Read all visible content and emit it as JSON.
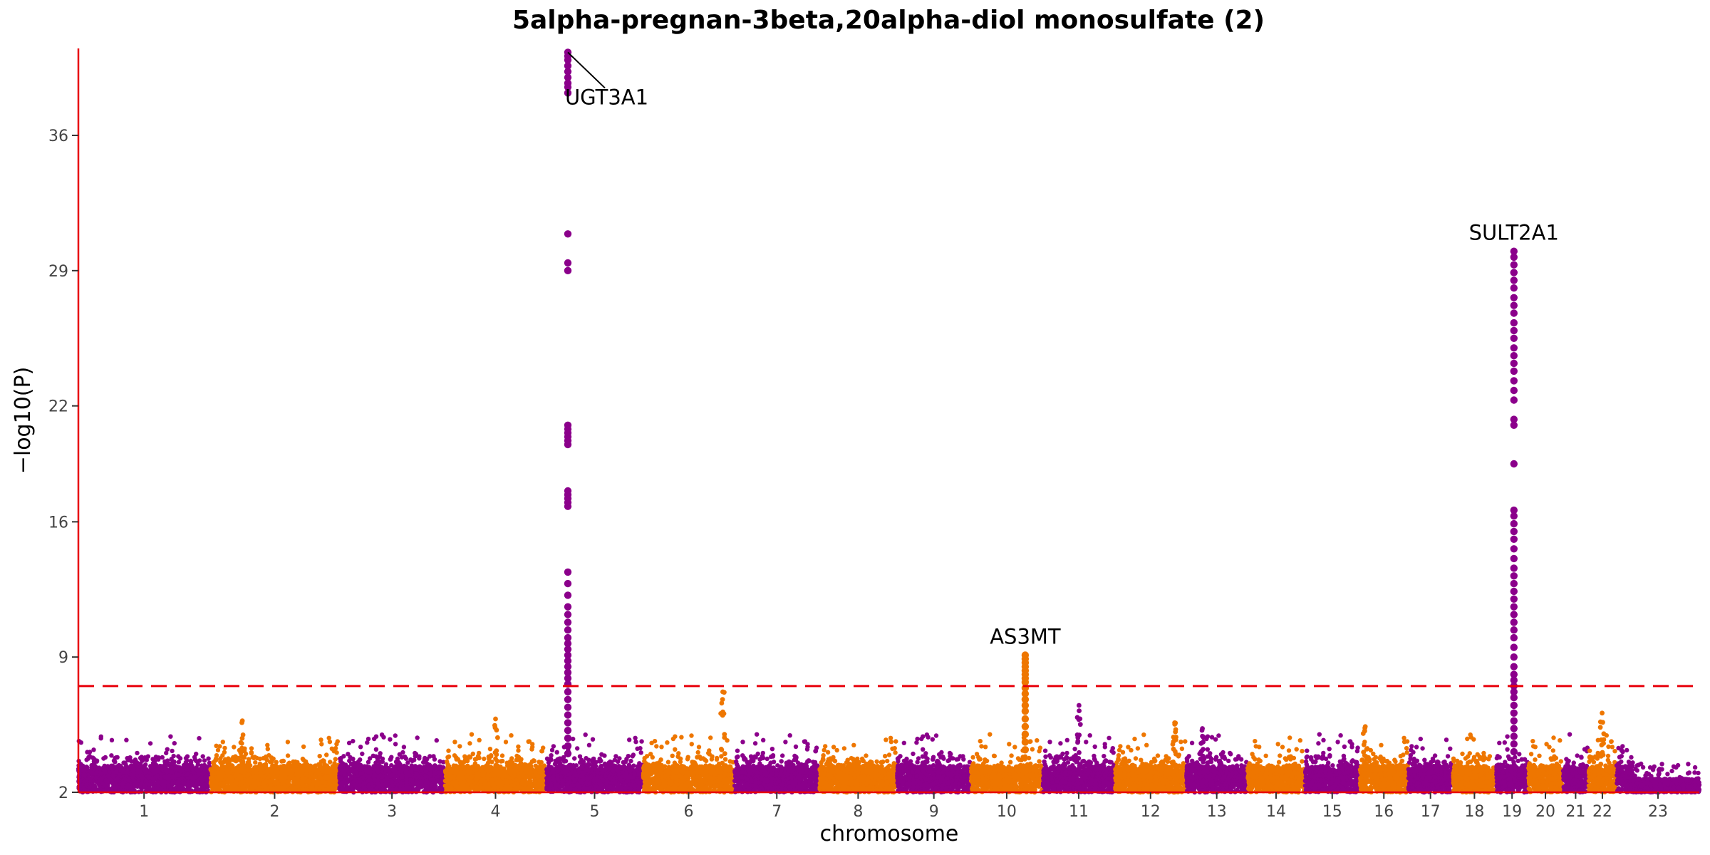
{
  "chart_data": {
    "type": "scatter",
    "title": "5alpha-pregnan-3beta,20alpha-diol monosulfate (2)",
    "xlabel": "chromosome",
    "ylabel": "−log10(P)",
    "ylim": [
      2,
      40.5
    ],
    "yticks": [
      2,
      9,
      16,
      22,
      29,
      36
    ],
    "threshold": 7.5,
    "grid": false,
    "colors": {
      "odd": "#8B008B",
      "even": "#EE7600",
      "axis": "#E8000B",
      "threshold": "#E8000B"
    },
    "chromosomes": [
      {
        "label": "1",
        "size": 248
      },
      {
        "label": "2",
        "size": 242
      },
      {
        "label": "3",
        "size": 198
      },
      {
        "label": "4",
        "size": 190
      },
      {
        "label": "5",
        "size": 181
      },
      {
        "label": "6",
        "size": 171
      },
      {
        "label": "7",
        "size": 159
      },
      {
        "label": "8",
        "size": 145
      },
      {
        "label": "9",
        "size": 138
      },
      {
        "label": "10",
        "size": 134
      },
      {
        "label": "11",
        "size": 135
      },
      {
        "label": "12",
        "size": 133
      },
      {
        "label": "13",
        "size": 114
      },
      {
        "label": "14",
        "size": 107
      },
      {
        "label": "15",
        "size": 102
      },
      {
        "label": "16",
        "size": 90
      },
      {
        "label": "17",
        "size": 83
      },
      {
        "label": "18",
        "size": 80
      },
      {
        "label": "19",
        "size": 59
      },
      {
        "label": "20",
        "size": 64
      },
      {
        "label": "21",
        "size": 47
      },
      {
        "label": "22",
        "size": 51
      },
      {
        "label": "23",
        "size": 156
      }
    ],
    "peaks": [
      {
        "chrom": "5",
        "pos": 40,
        "gene": "UGT3A1",
        "values": [
          40.3,
          40.1,
          39.9,
          39.6,
          39.3,
          39.0,
          38.7,
          38.5,
          38.2,
          30.9,
          29.4,
          29.0,
          21.0,
          20.8,
          20.6,
          20.4,
          20.2,
          20.0,
          17.6,
          17.4,
          17.2,
          17.0,
          16.8,
          13.4,
          12.8,
          12.2,
          11.6,
          11.2,
          10.8,
          10.4,
          10.0,
          9.7,
          9.4,
          9.1,
          8.8,
          8.5,
          8.2,
          7.9,
          7.6,
          7.2,
          6.8,
          6.4,
          6.0,
          5.6,
          5.2,
          4.8,
          4.4,
          4.0
        ]
      },
      {
        "chrom": "10",
        "pos": 102,
        "gene": "AS3MT",
        "values": [
          9.1,
          8.9,
          8.7,
          8.5,
          8.3,
          8.1,
          7.9,
          7.7,
          7.4,
          7.1,
          6.8,
          6.5,
          6.2,
          5.8,
          5.4,
          5.0,
          4.6,
          4.2
        ]
      },
      {
        "chrom": "19",
        "pos": 33,
        "gene": "SULT2A1",
        "values": [
          30.0,
          29.7,
          29.3,
          28.9,
          28.5,
          28.1,
          27.6,
          27.2,
          26.8,
          26.3,
          25.9,
          25.5,
          25.0,
          24.6,
          24.2,
          23.8,
          23.3,
          22.8,
          22.3,
          21.3,
          21.0,
          19.0,
          16.6,
          16.3,
          15.9,
          15.5,
          15.1,
          14.6,
          14.1,
          13.6,
          13.2,
          12.8,
          12.4,
          12.0,
          11.6,
          11.2,
          10.8,
          10.4,
          10.0,
          9.5,
          9.0,
          8.5,
          8.1,
          7.8,
          7.5,
          7.2,
          6.9,
          6.5,
          6.1,
          5.7,
          5.3,
          4.9,
          4.5,
          4.1
        ]
      }
    ],
    "minor_peaks": [
      {
        "chrom": "6",
        "pos": 150,
        "top": 7.2
      },
      {
        "chrom": "11",
        "pos": 68,
        "top": 6.5
      },
      {
        "chrom": "22",
        "pos": 25,
        "top": 6.1
      },
      {
        "chrom": "4",
        "pos": 95,
        "top": 5.8
      },
      {
        "chrom": "2",
        "pos": 60,
        "top": 5.7
      },
      {
        "chrom": "12",
        "pos": 112,
        "top": 5.6
      },
      {
        "chrom": "13",
        "pos": 30,
        "top": 5.3
      },
      {
        "chrom": "16",
        "pos": 10,
        "top": 5.4
      }
    ]
  }
}
